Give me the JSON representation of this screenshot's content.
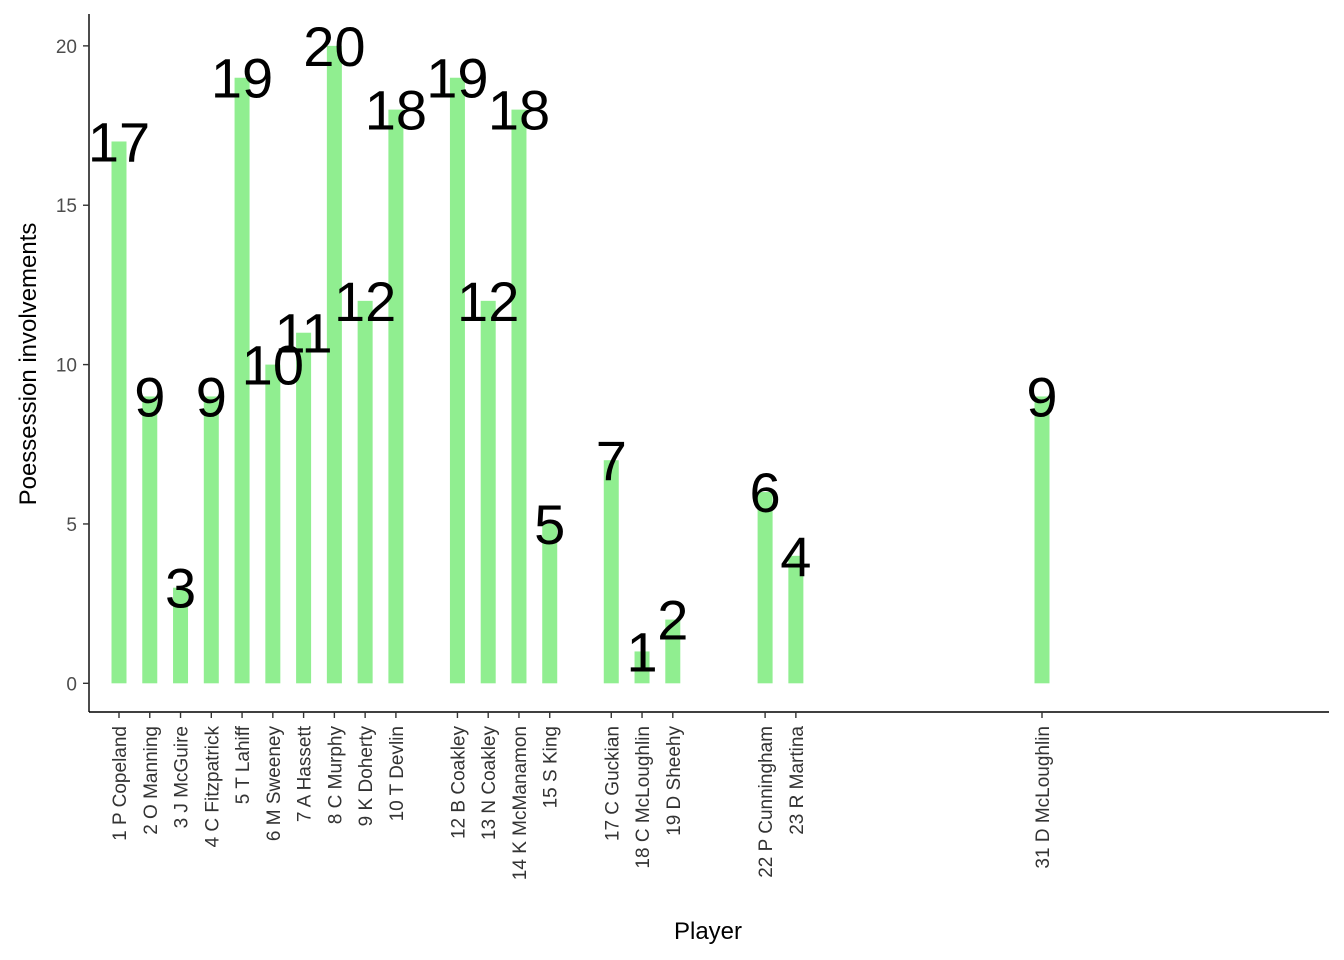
{
  "chart_data": {
    "type": "bar",
    "title": "",
    "xlabel": "Player",
    "ylabel": "Poessession involvements",
    "ylim": [
      -0.9,
      21
    ],
    "yticks": [
      0,
      5,
      10,
      15,
      20
    ],
    "grid": false,
    "bar_color": "#90ee90",
    "x_positions": [
      1,
      2,
      3,
      4,
      5,
      6,
      7,
      8,
      9,
      10,
      12,
      13,
      14,
      15,
      17,
      18,
      19,
      22,
      23,
      31
    ],
    "xlim": [
      0,
      40
    ],
    "categories": [
      "1 P Copeland",
      "2 O Manning",
      "3 J McGuire",
      "4 C Fitzpatrick",
      "5 T Lahiff",
      "6 M Sweeney",
      "7 A Hassett",
      "8 C Murphy",
      "9 K Doherty",
      "10 T Devlin",
      "12 B Coakley",
      "13 N Coakley",
      "14 K McManamon",
      "15 S King",
      "17 C Guckian",
      "18 C McLoughlin",
      "19 D Sheehy",
      "22 P Cunningham",
      "23 R Martina",
      "31 D McLoughlin"
    ],
    "values": [
      17,
      9,
      3,
      9,
      19,
      10,
      11,
      20,
      12,
      18,
      19,
      12,
      18,
      5,
      7,
      1,
      2,
      6,
      4,
      9
    ]
  }
}
